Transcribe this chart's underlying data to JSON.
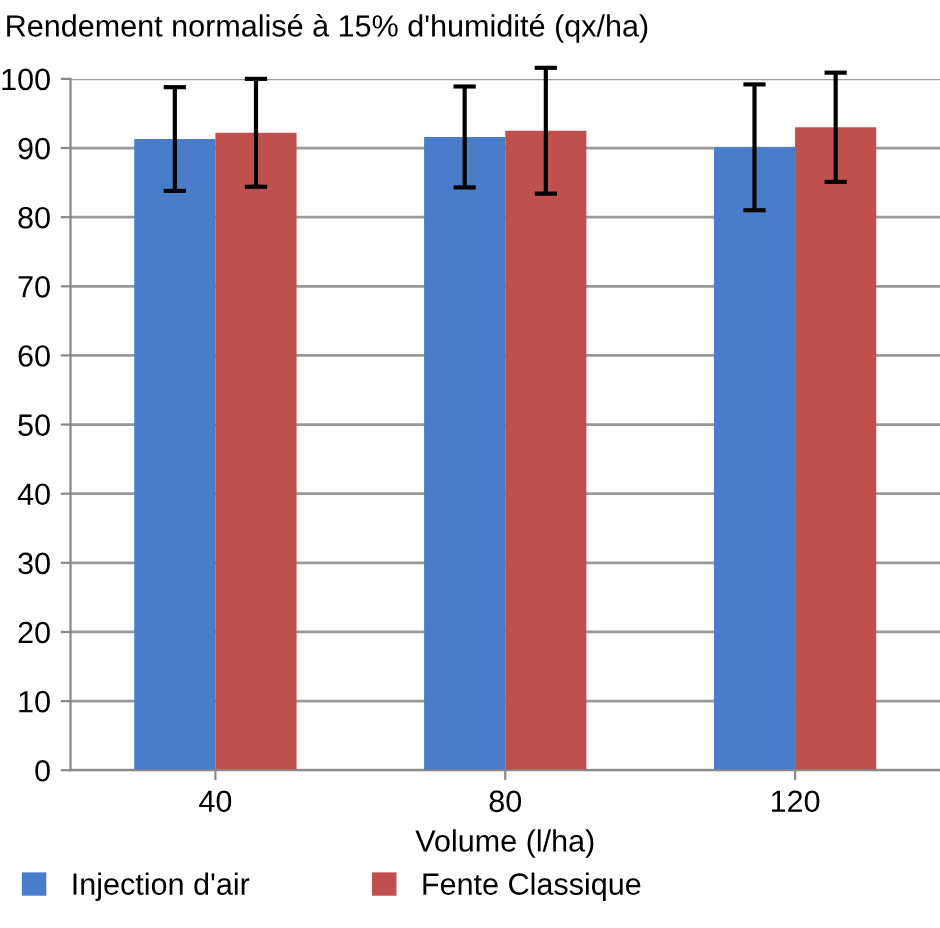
{
  "chart_data": {
    "type": "bar",
    "ylabel": "Rendement normalisé à 15% d'humidité (qx/ha)",
    "xlabel": "Volume (l/ha)",
    "categories": [
      "40",
      "80",
      "120"
    ],
    "series": [
      {
        "name": "Injection d'air",
        "color": "#4a7dc9",
        "values": [
          91.3,
          91.6,
          90.1
        ],
        "errors": [
          7.5,
          7.3,
          9.1
        ]
      },
      {
        "name": "Fente Classique",
        "color": "#c0504d",
        "values": [
          92.2,
          92.5,
          93.0
        ],
        "errors": [
          7.8,
          9.1,
          7.9
        ]
      }
    ],
    "ylim": [
      0,
      100
    ],
    "yticks": [
      0,
      10,
      20,
      30,
      40,
      50,
      60,
      70,
      80,
      90,
      100
    ],
    "grid": "y",
    "legend": "bottom left"
  }
}
